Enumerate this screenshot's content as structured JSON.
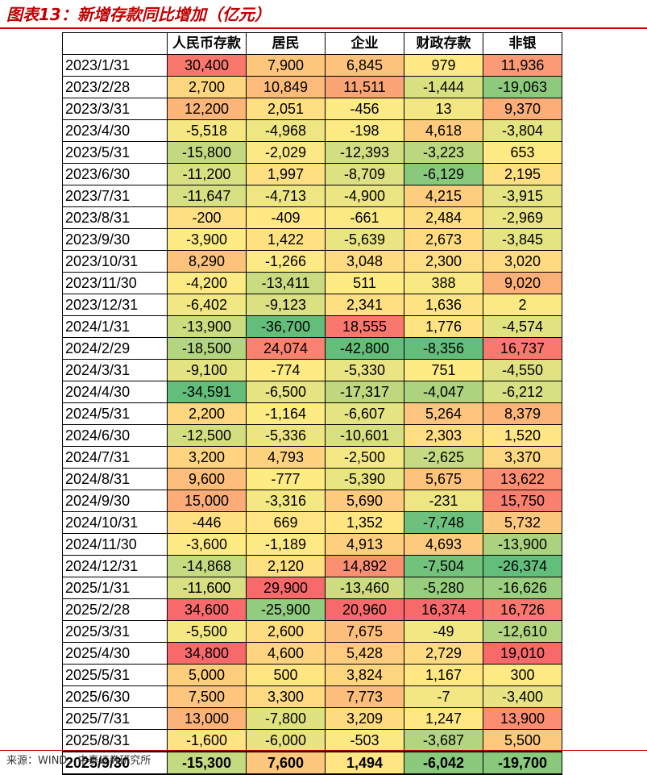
{
  "title": "图表13：新增存款同比增加（亿元）",
  "source": "来源：WIND，中泰证券研究所",
  "colors": {
    "accent": "#c00000",
    "low": "#63be7b",
    "mid": "#ffeb84",
    "high": "#f8696b"
  },
  "chart_data": {
    "type": "table",
    "columns": [
      "",
      "人民币存款",
      "居民",
      "企业",
      "财政存款",
      "非银"
    ],
    "rows": [
      {
        "date": "2023/1/31",
        "values": [
          30400,
          7900,
          6845,
          979,
          11936
        ]
      },
      {
        "date": "2023/2/28",
        "values": [
          2700,
          10849,
          11511,
          -1444,
          -19063
        ]
      },
      {
        "date": "2023/3/31",
        "values": [
          12200,
          2051,
          -456,
          13,
          9370
        ]
      },
      {
        "date": "2023/4/30",
        "values": [
          -5518,
          -4968,
          -198,
          4618,
          -3804
        ]
      },
      {
        "date": "2023/5/31",
        "values": [
          -15800,
          -2029,
          -12393,
          -3223,
          653
        ]
      },
      {
        "date": "2023/6/30",
        "values": [
          -11200,
          1997,
          -8709,
          -6129,
          2195
        ]
      },
      {
        "date": "2023/7/31",
        "values": [
          -11647,
          -4713,
          -4900,
          4215,
          -3915
        ]
      },
      {
        "date": "2023/8/31",
        "values": [
          -200,
          -409,
          -661,
          2484,
          -2969
        ]
      },
      {
        "date": "2023/9/30",
        "values": [
          -3900,
          1422,
          -5639,
          2673,
          -3845
        ]
      },
      {
        "date": "2023/10/31",
        "values": [
          8290,
          -1266,
          3048,
          2300,
          3020
        ]
      },
      {
        "date": "2023/11/30",
        "values": [
          -4200,
          -13411,
          511,
          388,
          9020
        ]
      },
      {
        "date": "2023/12/31",
        "values": [
          -6402,
          -9123,
          2341,
          1636,
          2
        ]
      },
      {
        "date": "2024/1/31",
        "values": [
          -13900,
          -36700,
          18555,
          1776,
          -4574
        ]
      },
      {
        "date": "2024/2/29",
        "values": [
          -18500,
          24074,
          -42800,
          -8356,
          16737
        ]
      },
      {
        "date": "2024/3/31",
        "values": [
          -9100,
          -774,
          -5330,
          751,
          -4550
        ]
      },
      {
        "date": "2024/4/30",
        "values": [
          -34591,
          -6500,
          -17317,
          -4047,
          -6212
        ]
      },
      {
        "date": "2024/5/31",
        "values": [
          2200,
          -1164,
          -6607,
          5264,
          8379
        ]
      },
      {
        "date": "2024/6/30",
        "values": [
          -12500,
          -5336,
          -10601,
          2303,
          1520
        ]
      },
      {
        "date": "2024/7/31",
        "values": [
          3200,
          4793,
          -2500,
          -2625,
          3370
        ]
      },
      {
        "date": "2024/8/31",
        "values": [
          9600,
          -777,
          -5390,
          5675,
          13622
        ]
      },
      {
        "date": "2024/9/30",
        "values": [
          15000,
          -3316,
          5690,
          -231,
          15750
        ]
      },
      {
        "date": "2024/10/31",
        "values": [
          -446,
          669,
          1352,
          -7748,
          5732
        ]
      },
      {
        "date": "2024/11/30",
        "values": [
          -3600,
          -1189,
          4913,
          4693,
          -13900
        ]
      },
      {
        "date": "2024/12/31",
        "values": [
          -14868,
          2120,
          14892,
          -7504,
          -26374
        ]
      },
      {
        "date": "2025/1/31",
        "values": [
          -11600,
          29900,
          -13460,
          -5280,
          -16626
        ]
      },
      {
        "date": "2025/2/28",
        "values": [
          34600,
          -25900,
          20960,
          16374,
          16726
        ]
      },
      {
        "date": "2025/3/31",
        "values": [
          -5500,
          2600,
          7675,
          -49,
          -12610
        ]
      },
      {
        "date": "2025/4/30",
        "values": [
          34800,
          4600,
          5428,
          2729,
          19010
        ]
      },
      {
        "date": "2025/5/31",
        "values": [
          5000,
          500,
          3824,
          1167,
          300
        ]
      },
      {
        "date": "2025/6/30",
        "values": [
          7500,
          3300,
          7773,
          -7,
          -3400
        ]
      },
      {
        "date": "2025/7/31",
        "values": [
          13000,
          -7800,
          3209,
          1247,
          13900
        ]
      },
      {
        "date": "2025/8/31",
        "values": [
          -1600,
          -6000,
          -503,
          -3687,
          5500
        ]
      },
      {
        "date": "2025/9/30",
        "values": [
          -15300,
          7600,
          1494,
          -6042,
          -19700
        ]
      }
    ]
  }
}
